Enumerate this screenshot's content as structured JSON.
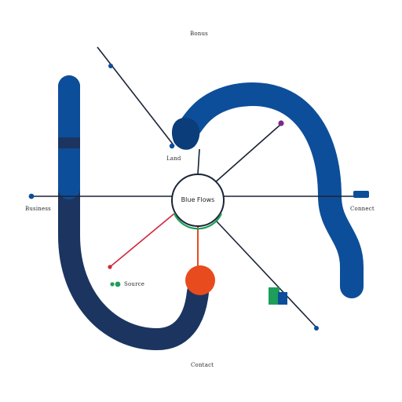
{
  "diagram": {
    "hub_label": "Blue Flows",
    "labels": {
      "top": "Bonus",
      "upper_center": "Land",
      "left": "Business",
      "right": "Connect",
      "lower_left": "Source",
      "bottom": "Contact"
    },
    "colors": {
      "navy": "#1b3560",
      "royal": "#0d4e9a",
      "blue_dark": "#0b3d7a",
      "line": "#1a2436",
      "red": "#d0283c",
      "orange": "#e84b1e",
      "green": "#1e9e5a",
      "purple": "#7b2a86"
    }
  }
}
